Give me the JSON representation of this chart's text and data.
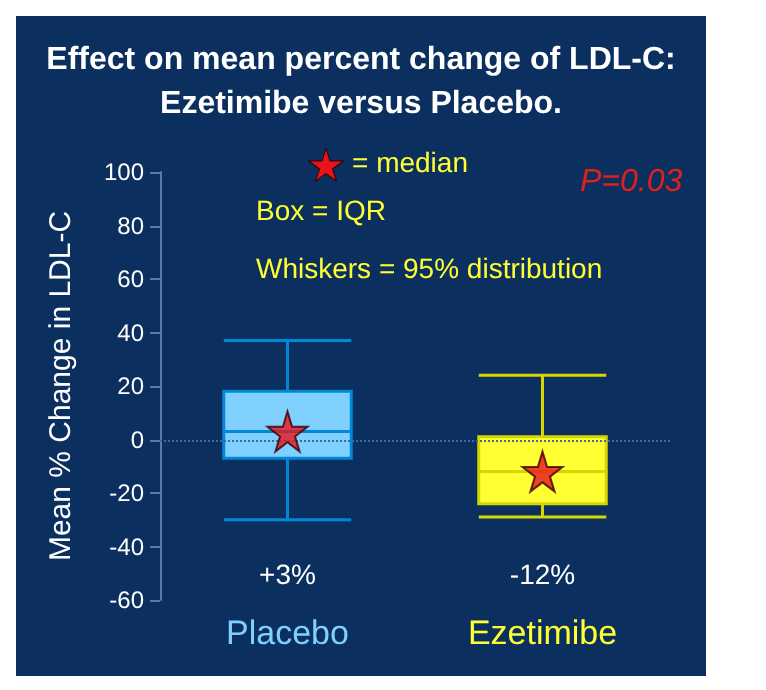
{
  "chart_data": {
    "type": "box",
    "title": "Effect on mean percent change of LDL-C:\nEzetimibe versus Placebo.",
    "ylabel": "Mean % Change in LDL-C",
    "categories": [
      "Placebo",
      "Ezetimibe"
    ],
    "colors": [
      "#80d0ff",
      "#ffff33"
    ],
    "boxes": [
      {
        "low": -30,
        "q1": -7,
        "median": 3,
        "q3": 18,
        "high": 37
      },
      {
        "low": -29,
        "q1": -24,
        "median": -12,
        "q3": 1,
        "high": 24
      }
    ],
    "series": [
      {
        "type": "scatter",
        "x": [
          "Placebo",
          "Ezetimibe"
        ],
        "values": [
          3,
          -12
        ],
        "color": "#e8141c"
      }
    ],
    "ylim": [
      -60,
      100
    ],
    "yticks": [
      -60,
      -40,
      -20,
      0,
      20,
      40,
      60,
      80,
      100
    ],
    "grid": false,
    "marker": "star",
    "ref_lines": [
      {
        "axis": "y",
        "value": 0,
        "line_style": "dotted",
        "color": "#3d6a9a"
      }
    ],
    "annotations": [
      "= median",
      "Box = IQR",
      "Whiskers = 95% distribution",
      "P=0.03",
      "+3%",
      "-12%"
    ]
  }
}
